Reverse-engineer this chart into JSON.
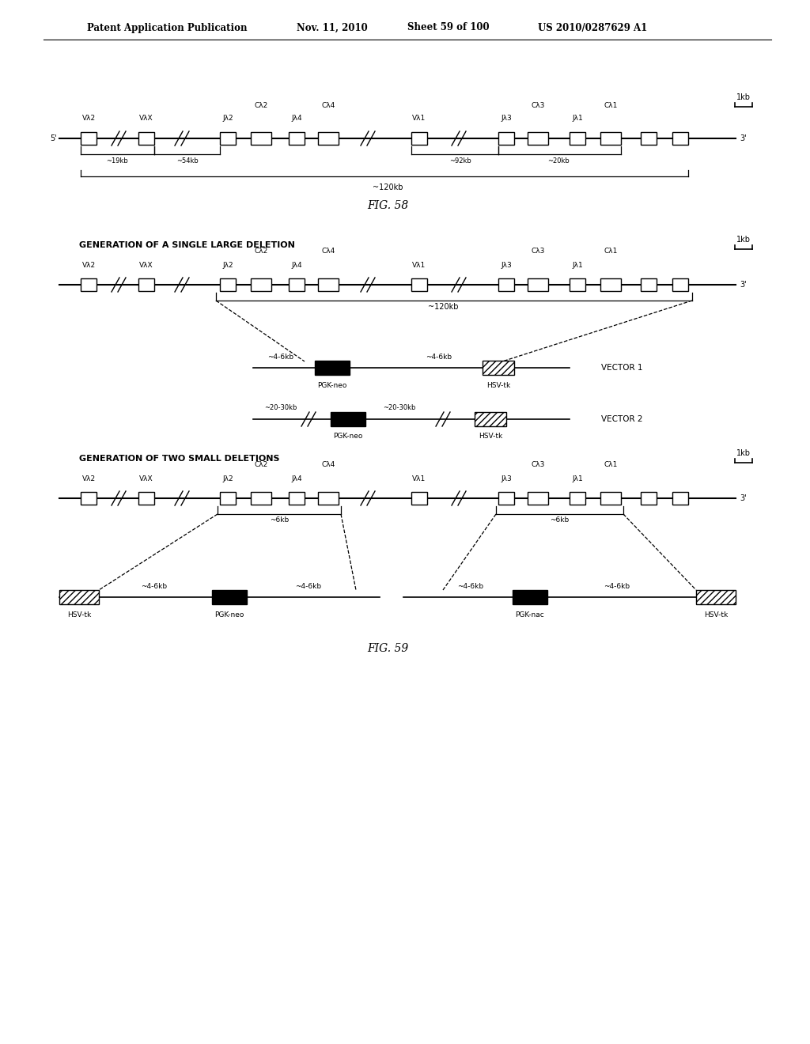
{
  "bg": "#ffffff",
  "header_line1": "Patent Application Publication",
  "header_line2": "Nov. 11, 2010",
  "header_line3": "Sheet 59 of 100",
  "header_line4": "US 2010/0287629 A1",
  "fig58_caption": "FIG. 58",
  "fig59_caption": "FIG. 59",
  "sec1_title": "GENERATION OF A SINGLE LARGE DELETION",
  "sec2_title": "GENERATION OF TWO SMALL DELETIONS"
}
